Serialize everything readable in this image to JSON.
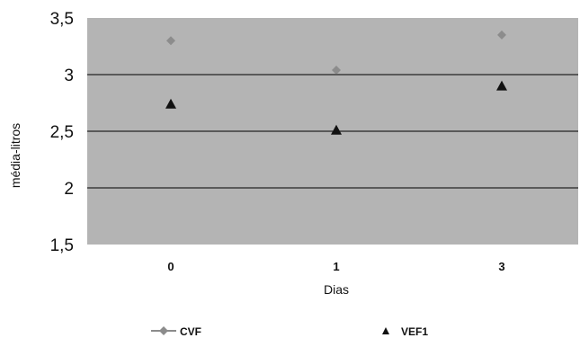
{
  "chart_data": {
    "type": "scatter",
    "xlabel": "Dias",
    "ylabel": "média-litros",
    "categories": [
      "0",
      "1",
      "3"
    ],
    "ylim": [
      1.5,
      3.5
    ],
    "yticks": [
      "3,5",
      "3",
      "2,5",
      "2",
      "1,5"
    ],
    "ytick_values": [
      3.5,
      3.0,
      2.5,
      2.0,
      1.5
    ],
    "grid": "horizontal",
    "legend_position": "bottom",
    "series": [
      {
        "name": "CVF",
        "marker": "diamond",
        "color": "#8c8c8c",
        "values": [
          3.3,
          3.04,
          3.35
        ]
      },
      {
        "name": "VEF1",
        "marker": "triangle",
        "color": "#111111",
        "values": [
          2.74,
          2.51,
          2.9
        ]
      }
    ],
    "plot_background": "#b4b4b4"
  }
}
